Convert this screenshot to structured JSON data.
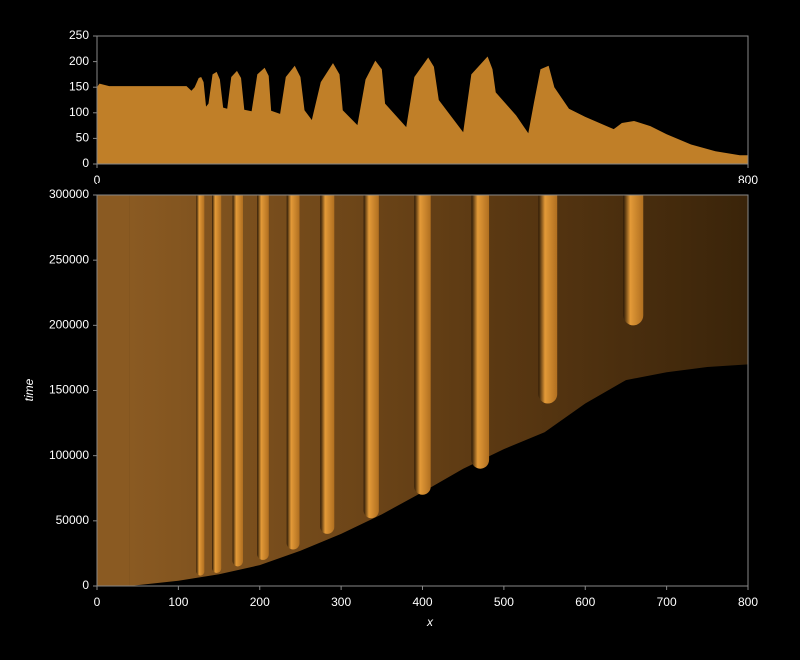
{
  "chart_data": [
    {
      "type": "area",
      "color": "#c07f28",
      "x": [
        0,
        3,
        15,
        110,
        116,
        120,
        125,
        128,
        131,
        134,
        137,
        142,
        147,
        151,
        155,
        160,
        165,
        172,
        177,
        181,
        190,
        197,
        206,
        211,
        214,
        225,
        232,
        243,
        250,
        255,
        264,
        275,
        290,
        298,
        302,
        320,
        330,
        342,
        350,
        354,
        380,
        390,
        407,
        414,
        420,
        450,
        460,
        480,
        486,
        490,
        515,
        530,
        537,
        545,
        555,
        562,
        580,
        600,
        635,
        645,
        660,
        680,
        700,
        730,
        760,
        790,
        800
      ],
      "values": [
        150,
        157,
        152,
        152,
        143,
        150,
        168,
        170,
        160,
        112,
        118,
        175,
        180,
        165,
        110,
        108,
        170,
        182,
        168,
        106,
        103,
        175,
        188,
        172,
        104,
        98,
        170,
        192,
        170,
        105,
        86,
        160,
        197,
        175,
        105,
        76,
        165,
        202,
        185,
        118,
        72,
        170,
        208,
        190,
        125,
        62,
        175,
        210,
        185,
        140,
        95,
        60,
        120,
        185,
        192,
        150,
        108,
        92,
        68,
        80,
        84,
        74,
        58,
        38,
        25,
        17,
        17
      ],
      "xlim": [
        0,
        800
      ],
      "ylim": [
        0,
        250
      ],
      "xticks": [
        0,
        800
      ],
      "yticks": [
        0,
        50,
        100,
        150,
        200,
        250
      ]
    },
    {
      "type": "heatmap",
      "xlabel": "x",
      "ylabel": "time",
      "color": "#d08a2c",
      "xlim": [
        0,
        800
      ],
      "ylim": [
        0,
        300000
      ],
      "xticks": [
        0,
        100,
        200,
        300,
        400,
        500,
        600,
        700,
        800
      ],
      "yticks": [
        0,
        50000,
        100000,
        150000,
        200000,
        250000,
        300000
      ],
      "front": {
        "x": [
          40,
          100,
          150,
          200,
          250,
          300,
          350,
          400,
          450,
          500,
          550,
          600,
          650,
          700,
          750,
          800
        ],
        "values": [
          0,
          4000,
          9000,
          16000,
          27000,
          40000,
          55000,
          72000,
          90000,
          105000,
          118000,
          140000,
          158000,
          164000,
          168000,
          170000
        ]
      },
      "stripes": {
        "x": [
          127,
          147,
          173,
          204,
          241,
          283,
          337,
          400,
          471,
          554,
          659
        ],
        "values": [
          8000,
          10000,
          15000,
          20000,
          28000,
          40000,
          52000,
          70000,
          90000,
          140000,
          200000
        ]
      }
    }
  ]
}
